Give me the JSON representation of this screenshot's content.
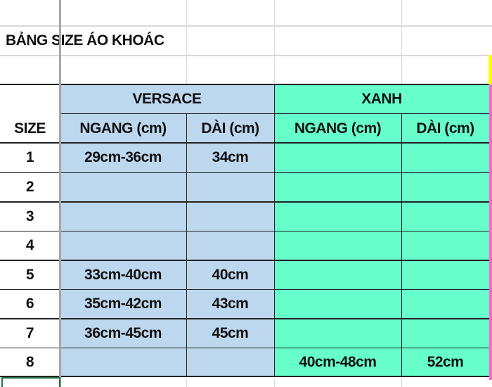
{
  "title": "BẢNG SIZE ÁO KHOÁC",
  "size_header": "SIZE",
  "groups": [
    {
      "name": "VERSACE",
      "color": "#bdd7ee",
      "columns": [
        "NGANG (cm)",
        "DÀI (cm)"
      ]
    },
    {
      "name": "XANH",
      "color": "#66ffcc",
      "columns": [
        "NGANG (cm)",
        "DÀI (cm)"
      ]
    }
  ],
  "rows": [
    {
      "size": "1",
      "versace_ngang": "29cm-36cm",
      "versace_dai": "34cm",
      "xanh_ngang": "",
      "xanh_dai": ""
    },
    {
      "size": "2",
      "versace_ngang": "",
      "versace_dai": "",
      "xanh_ngang": "",
      "xanh_dai": ""
    },
    {
      "size": "3",
      "versace_ngang": "",
      "versace_dai": "",
      "xanh_ngang": "",
      "xanh_dai": ""
    },
    {
      "size": "4",
      "versace_ngang": "",
      "versace_dai": "",
      "xanh_ngang": "",
      "xanh_dai": ""
    },
    {
      "size": "5",
      "versace_ngang": "33cm-40cm",
      "versace_dai": "40cm",
      "xanh_ngang": "",
      "xanh_dai": ""
    },
    {
      "size": "6",
      "versace_ngang": "35cm-42cm",
      "versace_dai": "43cm",
      "xanh_ngang": "",
      "xanh_dai": ""
    },
    {
      "size": "7",
      "versace_ngang": "36cm-45cm",
      "versace_dai": "45cm",
      "xanh_ngang": "",
      "xanh_dai": ""
    },
    {
      "size": "8",
      "versace_ngang": "",
      "versace_dai": "",
      "xanh_ngang": "40cm-48cm",
      "xanh_dai": "52cm"
    }
  ]
}
